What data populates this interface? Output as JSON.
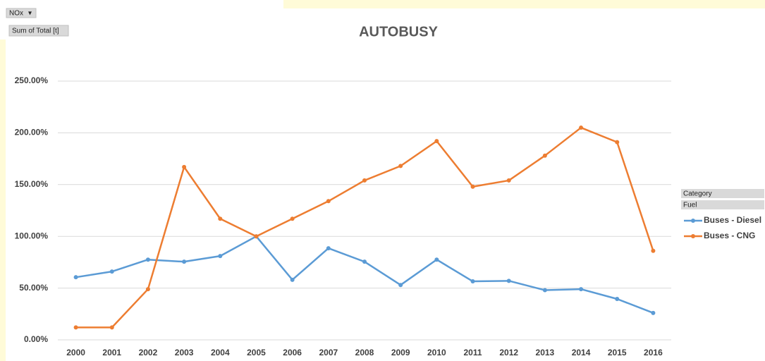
{
  "pivot_buttons": {
    "filter": "NOx",
    "values": "Sum of Total [t]",
    "legend_fields": [
      "Category",
      "Fuel"
    ]
  },
  "chart_data": {
    "type": "line",
    "title": "AUTOBUSY",
    "categories": [
      "2000",
      "2001",
      "2002",
      "2003",
      "2004",
      "2005",
      "2006",
      "2007",
      "2008",
      "2009",
      "2010",
      "2011",
      "2012",
      "2013",
      "2014",
      "2015",
      "2016"
    ],
    "series": [
      {
        "name": "Buses - Diesel",
        "color": "#5b9bd5",
        "values": [
          60.5,
          66,
          77.5,
          75.5,
          81,
          100,
          58,
          88.5,
          75.5,
          53,
          77.5,
          56.5,
          57,
          48,
          49,
          39.5,
          26
        ]
      },
      {
        "name": "Buses - CNG",
        "color": "#ed7d31",
        "values": [
          12,
          12,
          49,
          167,
          117,
          100,
          117,
          134,
          154,
          168,
          192,
          148,
          154,
          178,
          205,
          191,
          86
        ]
      }
    ],
    "ylim": [
      0,
      250
    ],
    "yticks": [
      {
        "value": 0,
        "label": "0.00%"
      },
      {
        "value": 50,
        "label": "50.00%"
      },
      {
        "value": 100,
        "label": "100.00%"
      },
      {
        "value": 150,
        "label": "150.00%"
      },
      {
        "value": 200,
        "label": "200.00%"
      },
      {
        "value": 250,
        "label": "250.00%"
      }
    ],
    "grid": true,
    "legend": "right"
  }
}
